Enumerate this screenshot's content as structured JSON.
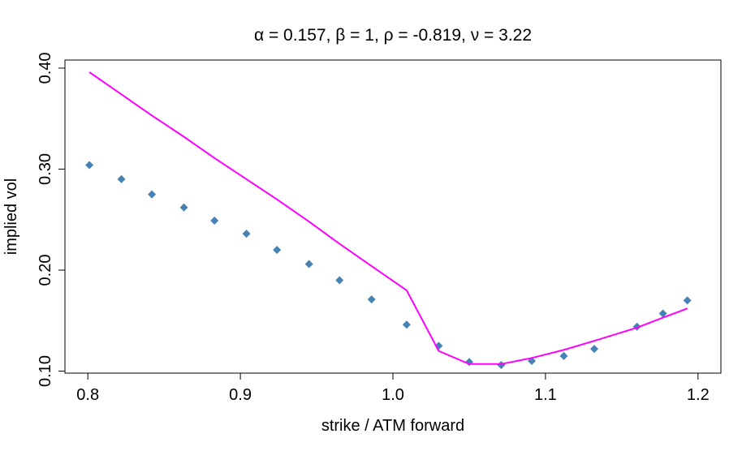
{
  "chart_data": {
    "type": "scatter",
    "title": "α = 0.157, β = 1, ρ = -0.819, ν = 3.22",
    "xlabel": "strike / ATM forward",
    "ylabel": "implied vol",
    "xlim": [
      0.785,
      1.215
    ],
    "ylim": [
      0.098,
      0.408
    ],
    "x_ticks": [
      0.8,
      0.9,
      1.0,
      1.1,
      1.2
    ],
    "x_tick_labels": [
      "0.8",
      "0.9",
      "1.0",
      "1.1",
      "1.2"
    ],
    "y_ticks": [
      0.1,
      0.2,
      0.3,
      0.4
    ],
    "y_tick_labels": [
      "0.10",
      "0.20",
      "0.30",
      "0.40"
    ],
    "grid": false,
    "series": [
      {
        "kind": "points",
        "color": "#4682B4",
        "marker": "diamond",
        "x": [
          0.801,
          0.822,
          0.842,
          0.863,
          0.883,
          0.904,
          0.924,
          0.945,
          0.965,
          0.986,
          1.009,
          1.03,
          1.05,
          1.071,
          1.091,
          1.112,
          1.132,
          1.16,
          1.177,
          1.193
        ],
        "y": [
          0.304,
          0.29,
          0.275,
          0.262,
          0.249,
          0.236,
          0.22,
          0.206,
          0.19,
          0.171,
          0.146,
          0.125,
          0.109,
          0.106,
          0.11,
          0.115,
          0.122,
          0.144,
          0.157,
          0.17
        ]
      },
      {
        "kind": "line",
        "color": "#FF00FF",
        "x": [
          0.801,
          0.822,
          0.842,
          0.863,
          0.883,
          0.904,
          0.924,
          0.945,
          0.965,
          0.986,
          1.009,
          1.03,
          1.05,
          1.071,
          1.091,
          1.112,
          1.132,
          1.16,
          1.177,
          1.193
        ],
        "y": [
          0.396,
          0.374,
          0.353,
          0.332,
          0.311,
          0.29,
          0.27,
          0.248,
          0.226,
          0.204,
          0.18,
          0.12,
          0.107,
          0.107,
          0.113,
          0.121,
          0.13,
          0.143,
          0.153,
          0.162
        ]
      }
    ]
  }
}
